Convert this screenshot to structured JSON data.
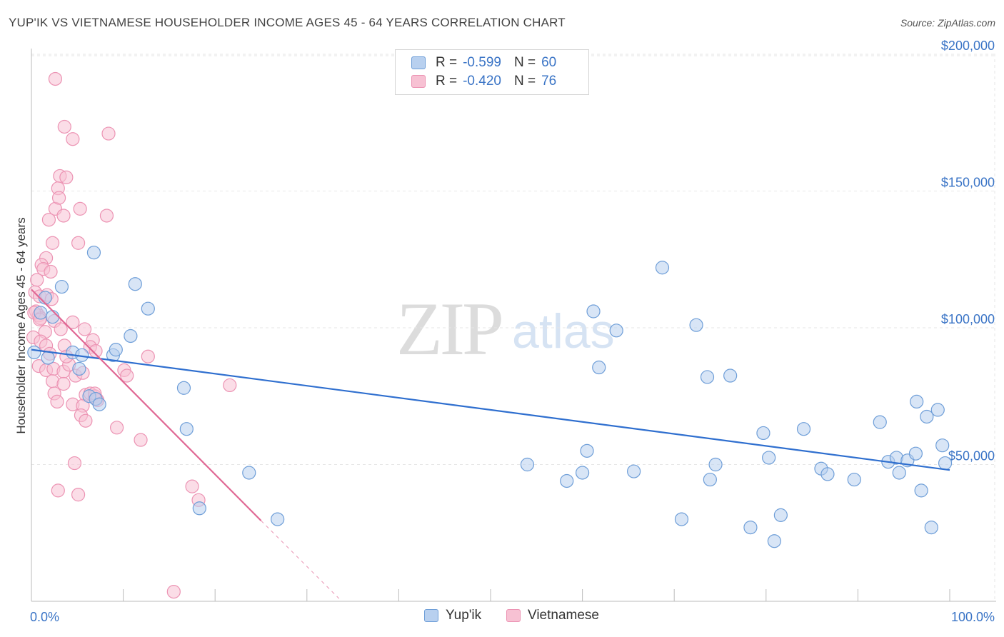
{
  "title": "YUP'IK VS VIETNAMESE HOUSEHOLDER INCOME AGES 45 - 64 YEARS CORRELATION CHART",
  "source": "Source: ZipAtlas.com",
  "watermark": {
    "zip": "ZIP",
    "atlas": "atlas"
  },
  "legend": {
    "rows": [
      {
        "r_label": "R =",
        "r_value": "-0.599",
        "n_label": "N =",
        "n_value": "60"
      },
      {
        "r_label": "R =",
        "r_value": "-0.420",
        "n_label": "N =",
        "n_value": "76"
      }
    ]
  },
  "bottom_legend": [
    "Yup'ik",
    "Vietnamese"
  ],
  "colors": {
    "yupik_fill": "#b8d0ef",
    "yupik_stroke": "#6e9ed8",
    "yupik_line": "#2f6fcf",
    "viet_fill": "#f7c1d3",
    "viet_stroke": "#ec93b3",
    "viet_line": "#e06894",
    "grid": "#e6e6e6",
    "tick_label": "#3a74c6"
  },
  "chart_data": {
    "type": "scatter",
    "title": "YUP'IK VS VIETNAMESE HOUSEHOLDER INCOME AGES 45 - 64 YEARS CORRELATION CHART",
    "xlabel": "",
    "ylabel": "Householder Income Ages 45 - 64 years",
    "xlim": [
      0,
      100
    ],
    "ylim": [
      0,
      210000
    ],
    "x_tick_labels": [
      "0.0%",
      "100.0%"
    ],
    "y_ticks": [
      50000,
      100000,
      150000,
      200000
    ],
    "y_tick_labels": [
      "$50,000",
      "$100,000",
      "$150,000",
      "$200,000"
    ],
    "series": [
      {
        "name": "Yup'ik",
        "r": -0.599,
        "n": 60,
        "trend": {
          "x": [
            0,
            100
          ],
          "y": [
            92000,
            48000
          ]
        },
        "points": [
          [
            0.3,
            91000
          ],
          [
            1.0,
            105500
          ],
          [
            1.5,
            111000
          ],
          [
            3.3,
            115000
          ],
          [
            2.3,
            104000
          ],
          [
            4.5,
            91000
          ],
          [
            5.2,
            85000
          ],
          [
            5.5,
            90000
          ],
          [
            6.3,
            75000
          ],
          [
            7.0,
            74000
          ],
          [
            7.4,
            72000
          ],
          [
            8.9,
            90000
          ],
          [
            9.2,
            92000
          ],
          [
            10.8,
            97000
          ],
          [
            11.3,
            116000
          ],
          [
            12.7,
            107000
          ],
          [
            16.6,
            78000
          ],
          [
            16.9,
            63000
          ],
          [
            18.3,
            34000
          ],
          [
            23.7,
            47000
          ],
          [
            26.8,
            30000
          ],
          [
            6.8,
            127500
          ],
          [
            1.8,
            89000
          ],
          [
            54.0,
            50000
          ],
          [
            58.3,
            44000
          ],
          [
            60.0,
            47000
          ],
          [
            60.5,
            55000
          ],
          [
            61.2,
            106000
          ],
          [
            61.8,
            85500
          ],
          [
            63.7,
            99000
          ],
          [
            65.6,
            47500
          ],
          [
            68.7,
            122000
          ],
          [
            70.8,
            30000
          ],
          [
            72.4,
            101000
          ],
          [
            73.6,
            82000
          ],
          [
            73.9,
            44500
          ],
          [
            74.5,
            50000
          ],
          [
            76.1,
            82500
          ],
          [
            78.3,
            27000
          ],
          [
            79.7,
            61500
          ],
          [
            80.3,
            52500
          ],
          [
            80.9,
            22000
          ],
          [
            81.6,
            31500
          ],
          [
            84.1,
            63000
          ],
          [
            86.0,
            48500
          ],
          [
            86.7,
            46500
          ],
          [
            89.6,
            44500
          ],
          [
            92.4,
            65500
          ],
          [
            93.3,
            51000
          ],
          [
            94.2,
            52500
          ],
          [
            94.5,
            47000
          ],
          [
            95.4,
            51500
          ],
          [
            96.3,
            54000
          ],
          [
            96.4,
            73000
          ],
          [
            96.9,
            40500
          ],
          [
            98.0,
            27000
          ],
          [
            98.7,
            70000
          ],
          [
            99.2,
            57000
          ],
          [
            99.5,
            50500
          ],
          [
            97.5,
            67500
          ]
        ]
      },
      {
        "name": "Vietnamese",
        "r": -0.42,
        "n": 76,
        "trend": {
          "x": [
            0,
            25
          ],
          "y": [
            114000,
            29500
          ]
        },
        "trend_dashed": {
          "x": [
            25,
            33.5
          ],
          "y": [
            29500,
            1000
          ]
        },
        "points": [
          [
            2.6,
            191000
          ],
          [
            3.6,
            173500
          ],
          [
            4.5,
            169000
          ],
          [
            8.4,
            171000
          ],
          [
            3.1,
            155500
          ],
          [
            3.8,
            155000
          ],
          [
            2.9,
            151000
          ],
          [
            2.6,
            143500
          ],
          [
            3.0,
            147500
          ],
          [
            3.5,
            141000
          ],
          [
            5.3,
            143500
          ],
          [
            8.2,
            141000
          ],
          [
            1.9,
            139500
          ],
          [
            2.3,
            131000
          ],
          [
            5.1,
            131000
          ],
          [
            1.6,
            125500
          ],
          [
            1.1,
            123000
          ],
          [
            1.3,
            121500
          ],
          [
            2.1,
            120500
          ],
          [
            0.6,
            117500
          ],
          [
            0.4,
            113000
          ],
          [
            0.9,
            111500
          ],
          [
            0.5,
            106000
          ],
          [
            0.8,
            104500
          ],
          [
            1.0,
            103500
          ],
          [
            0.3,
            105500
          ],
          [
            2.5,
            102500
          ],
          [
            3.2,
            99500
          ],
          [
            1.5,
            98500
          ],
          [
            4.5,
            102000
          ],
          [
            5.8,
            99500
          ],
          [
            6.7,
            95500
          ],
          [
            0.2,
            96500
          ],
          [
            1.0,
            95000
          ],
          [
            1.6,
            93500
          ],
          [
            2.0,
            90500
          ],
          [
            3.6,
            93500
          ],
          [
            6.4,
            93000
          ],
          [
            7.0,
            91500
          ],
          [
            12.7,
            89500
          ],
          [
            0.8,
            86000
          ],
          [
            1.6,
            84500
          ],
          [
            2.4,
            85000
          ],
          [
            3.5,
            84000
          ],
          [
            4.1,
            86500
          ],
          [
            4.8,
            82500
          ],
          [
            5.6,
            83500
          ],
          [
            10.1,
            84500
          ],
          [
            10.4,
            82500
          ],
          [
            2.3,
            80500
          ],
          [
            3.5,
            79500
          ],
          [
            2.5,
            76000
          ],
          [
            5.9,
            75500
          ],
          [
            6.4,
            76000
          ],
          [
            6.9,
            75000
          ],
          [
            7.1,
            74000
          ],
          [
            7.2,
            73500
          ],
          [
            4.5,
            72000
          ],
          [
            5.6,
            71500
          ],
          [
            2.8,
            73000
          ],
          [
            5.4,
            68000
          ],
          [
            5.9,
            66000
          ],
          [
            9.3,
            63500
          ],
          [
            11.9,
            59000
          ],
          [
            21.6,
            79000
          ],
          [
            4.7,
            50500
          ],
          [
            2.9,
            40500
          ],
          [
            5.1,
            39000
          ],
          [
            17.5,
            42000
          ],
          [
            18.2,
            37000
          ],
          [
            15.5,
            3500
          ],
          [
            6.9,
            76000
          ],
          [
            3.8,
            89500
          ],
          [
            0.9,
            103000
          ],
          [
            1.7,
            112000
          ],
          [
            2.2,
            110500
          ]
        ]
      }
    ]
  }
}
